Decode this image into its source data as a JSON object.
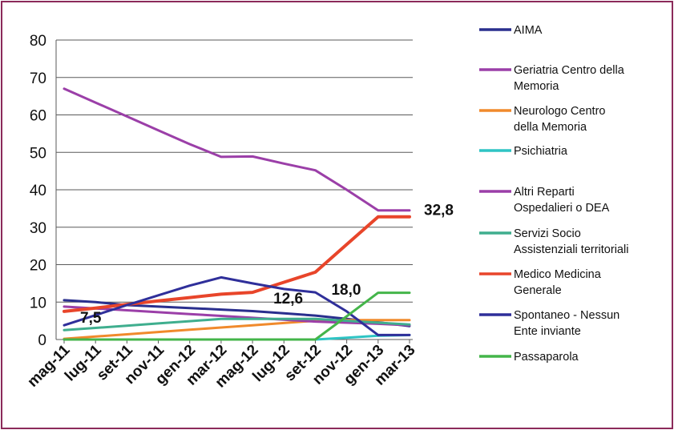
{
  "chart_data": {
    "type": "line",
    "categories": [
      "mag-11",
      "lug-11",
      "set-11",
      "nov-11",
      "gen-12",
      "mar-12",
      "mag-12",
      "lug-12",
      "set-12",
      "nov-12",
      "gen-13",
      "mar-13"
    ],
    "ylim": [
      0,
      80
    ],
    "yticks": [
      0,
      10,
      20,
      30,
      40,
      50,
      60,
      70,
      80
    ],
    "grid": true,
    "legend_position": "right",
    "series": [
      {
        "name": "AIMA",
        "color": "#2a2f8e",
        "values": [
          10.5,
          10.0,
          9.2,
          8.8,
          8.4,
          8.0,
          7.6,
          7.0,
          6.4,
          5.5,
          4.6,
          3.6
        ]
      },
      {
        "name": "Geriatria Centro della Memoria",
        "color": "#9b3fa8",
        "values": [
          67.0,
          63.3,
          59.6,
          55.9,
          52.2,
          48.8,
          48.9,
          47.0,
          45.2,
          40.0,
          34.5,
          34.5
        ]
      },
      {
        "name": "Neurologo Centro della Memoria",
        "color": "#f08a2c",
        "values": [
          0.2,
          0.8,
          1.4,
          2.0,
          2.6,
          3.2,
          3.8,
          4.4,
          5.0,
          5.2,
          5.2,
          5.2
        ]
      },
      {
        "name": "Psichiatria",
        "color": "#2ec4c4",
        "values": [
          0.0,
          0.0,
          0.0,
          0.0,
          0.0,
          0.0,
          0.0,
          0.0,
          0.0,
          0.5,
          1.0,
          1.2
        ]
      },
      {
        "name": "Altri Reparti Ospedalieri o DEA",
        "color": "#9b3fa8",
        "values": [
          8.8,
          8.3,
          7.8,
          7.3,
          6.8,
          6.3,
          5.8,
          5.3,
          4.8,
          4.5,
          4.2,
          3.8
        ]
      },
      {
        "name": "Servizi Socio Assistenziali territoriali",
        "color": "#3fae8e",
        "values": [
          2.5,
          3.1,
          3.7,
          4.3,
          4.9,
          5.5,
          5.5,
          5.5,
          5.5,
          5.0,
          4.5,
          4.0
        ]
      },
      {
        "name": "Medico Medicina Generale",
        "color": "#e8452a",
        "values": [
          7.5,
          8.4,
          9.4,
          10.3,
          11.2,
          12.1,
          12.6,
          15.3,
          18.0,
          25.4,
          32.8,
          32.8
        ]
      },
      {
        "name": "Spontaneo - Nessun Ente inviante",
        "color": "#2f2f9a",
        "values": [
          3.8,
          6.5,
          9.2,
          11.8,
          14.4,
          16.6,
          15.0,
          13.5,
          12.6,
          7.5,
          1.2,
          1.2
        ]
      },
      {
        "name": "Passaparola",
        "color": "#44b54a",
        "values": [
          0.0,
          0.0,
          0.0,
          0.0,
          0.0,
          0.0,
          0.0,
          0.0,
          0.0,
          6.2,
          12.5,
          12.5
        ]
      }
    ],
    "data_labels": [
      {
        "text": "7,5",
        "category": "mag-11",
        "value": 7.5
      },
      {
        "text": "12,6",
        "category": "mag-12",
        "value": 12.6
      },
      {
        "text": "18,0",
        "category": "set-12",
        "value": 18.0
      },
      {
        "text": "32,8",
        "category": "mar-13",
        "value": 32.8
      }
    ]
  }
}
